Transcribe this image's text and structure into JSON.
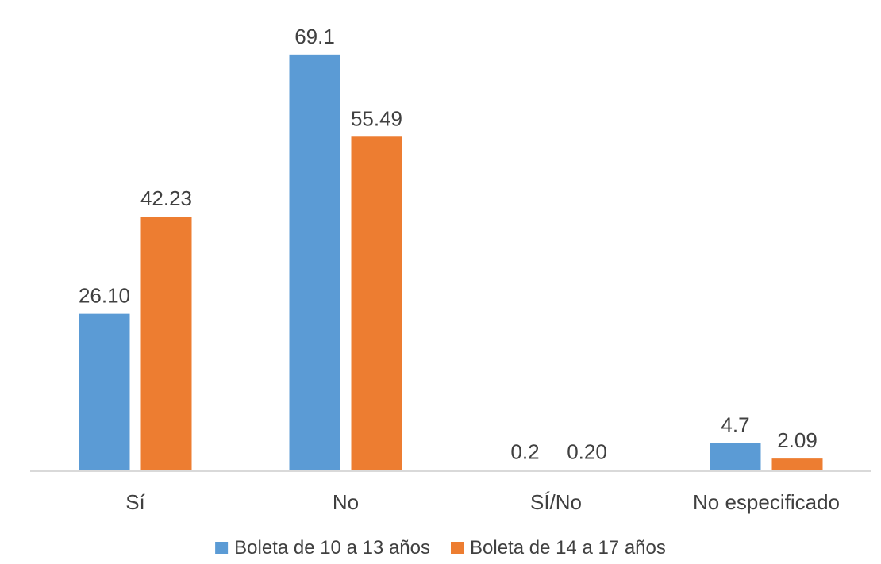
{
  "chart_data": {
    "type": "bar",
    "title": "",
    "xlabel": "",
    "ylabel": "",
    "categories": [
      "Sí",
      "No",
      "SÍ/No",
      "No especificado"
    ],
    "series": [
      {
        "name": "Boleta de 10 a 13 años",
        "values": [
          26.1,
          69.1,
          0.2,
          4.7
        ],
        "labels": [
          "26.10",
          "69.1",
          "0.2",
          "4.7"
        ],
        "color": "#5B9BD5"
      },
      {
        "name": "Boleta de 14 a 17 años",
        "values": [
          42.23,
          55.49,
          0.2,
          2.09
        ],
        "labels": [
          "42.23",
          "55.49",
          "0.20",
          "2.09"
        ],
        "color": "#ED7D31"
      }
    ],
    "ylim": [
      0,
      72
    ],
    "grid": false,
    "legend_position": "bottom",
    "axis_line_color": "#D9D9D9"
  }
}
